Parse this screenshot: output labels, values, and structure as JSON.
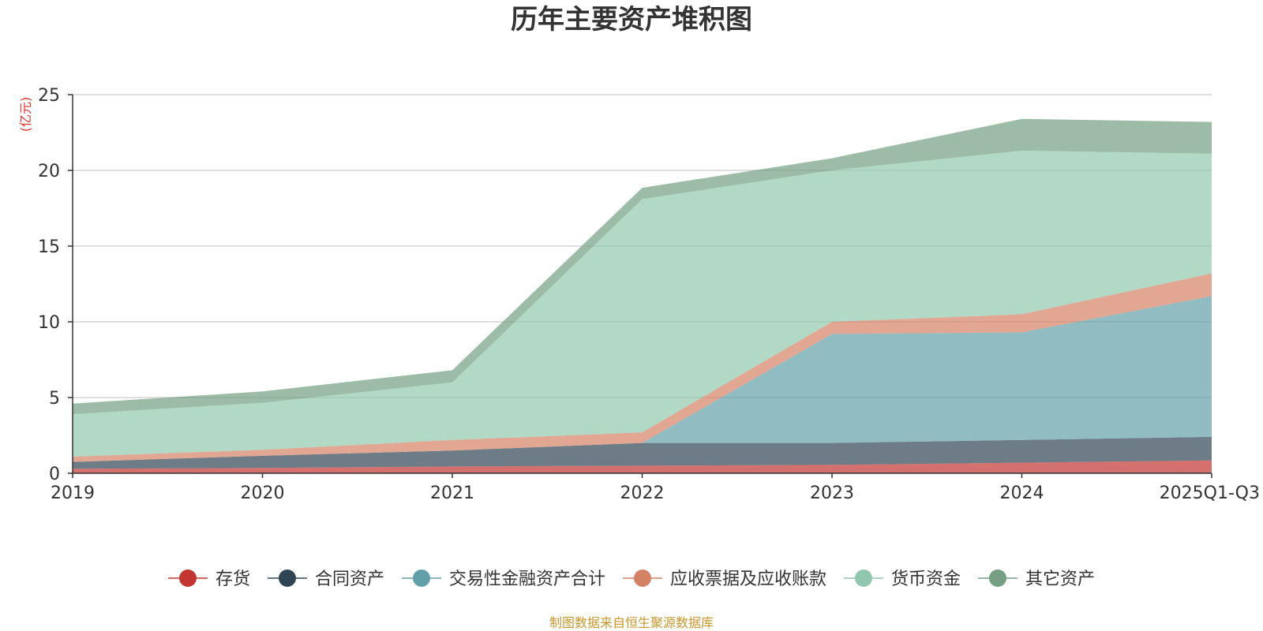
{
  "chart_data": {
    "type": "area",
    "stacked": true,
    "title": "历年主要资产堆积图",
    "ylabel": "(亿元)",
    "xlabel": "",
    "categories": [
      "2019",
      "2020",
      "2021",
      "2022",
      "2023",
      "2024",
      "2025Q1-Q3"
    ],
    "ylim": [
      0,
      25
    ],
    "yticks": [
      "0",
      "5",
      "10",
      "15",
      "20",
      "25"
    ],
    "grid": true,
    "legend_position": "bottom",
    "series": [
      {
        "name": "存货",
        "color": "#c23531",
        "values": [
          0.3,
          0.35,
          0.45,
          0.5,
          0.55,
          0.7,
          0.85
        ]
      },
      {
        "name": "合同资产",
        "color": "#2f4554",
        "values": [
          0.45,
          0.8,
          1.05,
          1.5,
          1.45,
          1.5,
          1.55
        ]
      },
      {
        "name": "交易性金融资产合计",
        "color": "#61a0a8",
        "values": [
          0,
          0,
          0,
          0,
          7.2,
          7.1,
          9.3
        ]
      },
      {
        "name": "应收票据及应收账款",
        "color": "#d48265",
        "values": [
          0.35,
          0.4,
          0.7,
          0.7,
          0.8,
          1.2,
          1.5
        ]
      },
      {
        "name": "货币资金",
        "color": "#91c7ae",
        "values": [
          2.8,
          3.1,
          3.8,
          15.4,
          10.0,
          10.8,
          7.9
        ]
      },
      {
        "name": "其它资产",
        "color": "#749f83",
        "values": [
          0.7,
          0.75,
          0.8,
          0.75,
          0.8,
          2.1,
          2.1
        ]
      }
    ]
  },
  "footer": {
    "source": "制图数据来自恒生聚源数据库"
  }
}
